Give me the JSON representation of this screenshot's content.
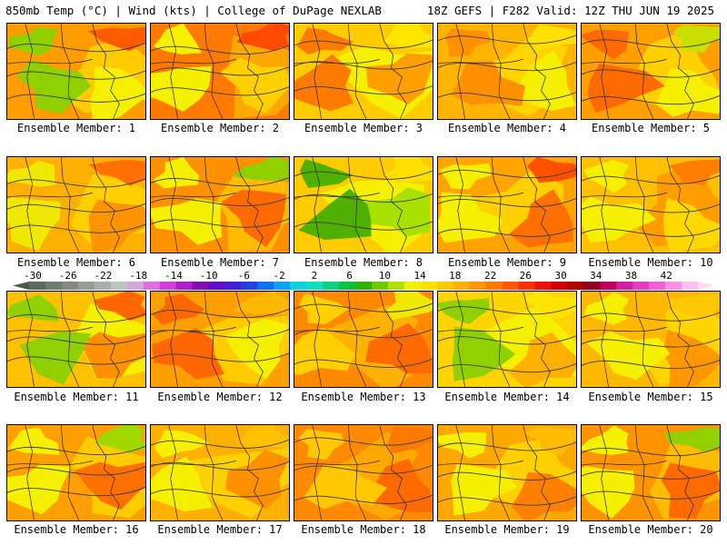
{
  "header": {
    "left": "850mb Temp (°C) | Wind (kts) | College of DuPage NEXLAB",
    "right": "18Z GEFS | F282 Valid: 12Z THU JUN 19 2025"
  },
  "panels": [
    {
      "label": "Ensemble Member: 1",
      "palette": [
        "#ff9c00",
        "#ffcc00",
        "#f4f000",
        "#90d000",
        "#ff5a00"
      ]
    },
    {
      "label": "Ensemble Member: 2",
      "palette": [
        "#ff7a00",
        "#ffa800",
        "#ffd000",
        "#f4f000",
        "#ff4a00"
      ]
    },
    {
      "label": "Ensemble Member: 3",
      "palette": [
        "#ffcc00",
        "#f4f000",
        "#ffa000",
        "#ff7a00",
        "#ffe600"
      ]
    },
    {
      "label": "Ensemble Member: 4",
      "palette": [
        "#ffb400",
        "#ffd400",
        "#f4f000",
        "#ff9000",
        "#ffe000"
      ]
    },
    {
      "label": "Ensemble Member: 5",
      "palette": [
        "#ffa000",
        "#ffd000",
        "#f4f000",
        "#ff6a00",
        "#c8e000"
      ]
    },
    {
      "label": "Ensemble Member: 6",
      "palette": [
        "#ffb000",
        "#ffd000",
        "#ff9400",
        "#f0e800",
        "#ff7000"
      ]
    },
    {
      "label": "Ensemble Member: 7",
      "palette": [
        "#ff9000",
        "#ffbc00",
        "#ff6a00",
        "#f4f000",
        "#90d000"
      ]
    },
    {
      "label": "Ensemble Member: 8",
      "palette": [
        "#ffcc00",
        "#f4f000",
        "#a8e000",
        "#50b000",
        "#ffe000"
      ]
    },
    {
      "label": "Ensemble Member: 9",
      "palette": [
        "#ffa400",
        "#ffd000",
        "#ff7000",
        "#f4f000",
        "#ff5000"
      ]
    },
    {
      "label": "Ensemble Member: 10",
      "palette": [
        "#ffc000",
        "#ff9c00",
        "#ffd800",
        "#f4f000",
        "#ff8000"
      ]
    },
    {
      "label": "Ensemble Member: 11",
      "palette": [
        "#ffc000",
        "#f4f000",
        "#ff9000",
        "#90d000",
        "#ff6800"
      ]
    },
    {
      "label": "Ensemble Member: 12",
      "palette": [
        "#ffa000",
        "#ffcc00",
        "#f4f000",
        "#ff6800",
        "#ffb800"
      ]
    },
    {
      "label": "Ensemble Member: 13",
      "palette": [
        "#ff8a00",
        "#ffb000",
        "#ff6a00",
        "#ffd000",
        "#f0e800"
      ]
    },
    {
      "label": "Ensemble Member: 14",
      "palette": [
        "#ffd400",
        "#f4f000",
        "#ffb000",
        "#90d000",
        "#ffe400"
      ]
    },
    {
      "label": "Ensemble Member: 15",
      "palette": [
        "#ffb800",
        "#ffd400",
        "#ff9800",
        "#f4f000",
        "#ffc800"
      ]
    },
    {
      "label": "Ensemble Member: 16",
      "palette": [
        "#ffa000",
        "#ffcc00",
        "#ff7000",
        "#f4f000",
        "#a0d800"
      ]
    },
    {
      "label": "Ensemble Member: 17",
      "palette": [
        "#ffb000",
        "#ffd000",
        "#ff9000",
        "#f4f000",
        "#ffc000"
      ]
    },
    {
      "label": "Ensemble Member: 18",
      "palette": [
        "#ff8a00",
        "#ffa800",
        "#ff6a00",
        "#ffc800",
        "#ff7800"
      ]
    },
    {
      "label": "Ensemble Member: 19",
      "palette": [
        "#ffa800",
        "#ffd000",
        "#ff8000",
        "#f4f000",
        "#ffbc00"
      ]
    },
    {
      "label": "Ensemble Member: 20",
      "palette": [
        "#ff9400",
        "#ffbc00",
        "#ff6a00",
        "#f4f000",
        "#90d000"
      ]
    }
  ],
  "colorbar": {
    "ticks": [
      "-30",
      "-26",
      "-22",
      "-18",
      "-14",
      "-10",
      "-6",
      "-2",
      "2",
      "6",
      "10",
      "14",
      "18",
      "22",
      "26",
      "30",
      "34",
      "38",
      "42"
    ],
    "colors": [
      "#5a6a5a",
      "#6e7e6e",
      "#828a82",
      "#969c96",
      "#aab0aa",
      "#bec4be",
      "#d2a8d8",
      "#e070e0",
      "#d040d8",
      "#b020c8",
      "#8010b0",
      "#6010c0",
      "#4020d0",
      "#2040e0",
      "#1070f0",
      "#10a0f0",
      "#10d0e0",
      "#10e0c0",
      "#10d080",
      "#10c040",
      "#30b000",
      "#70c800",
      "#b0e000",
      "#f0f000",
      "#ffe000",
      "#ffc800",
      "#ffb000",
      "#ff9800",
      "#ff7800",
      "#ff5800",
      "#ff3000",
      "#ee1010",
      "#d00000",
      "#b00000",
      "#900020",
      "#c00060",
      "#d020a0",
      "#e040c0",
      "#f060d8",
      "#ff90e8",
      "#ffc0f0"
    ]
  }
}
